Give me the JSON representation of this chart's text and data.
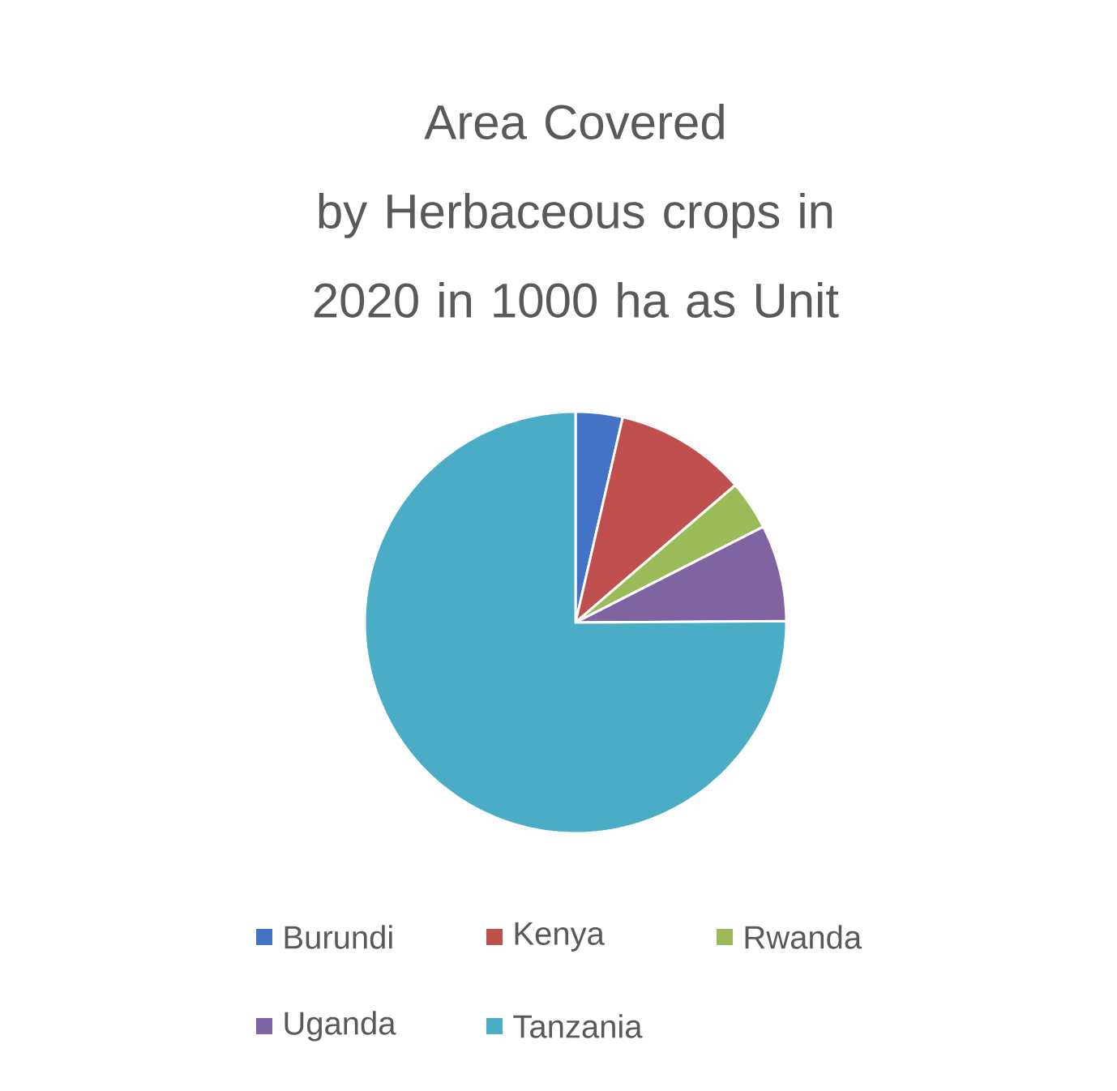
{
  "chart_data": {
    "type": "pie",
    "title": "Area Covered by Herbaceous crops in 2020 in 1000 ha as Unit",
    "categories": [
      "Burundi",
      "Kenya",
      "Rwanda",
      "Uganda",
      "Tanzania"
    ],
    "values": [
      3.6,
      10.1,
      3.8,
      7.4,
      75.1
    ],
    "colors": [
      "#4472c4",
      "#c0504d",
      "#9bbb59",
      "#8064a2",
      "#4bacc6"
    ],
    "legend": "bottom"
  }
}
